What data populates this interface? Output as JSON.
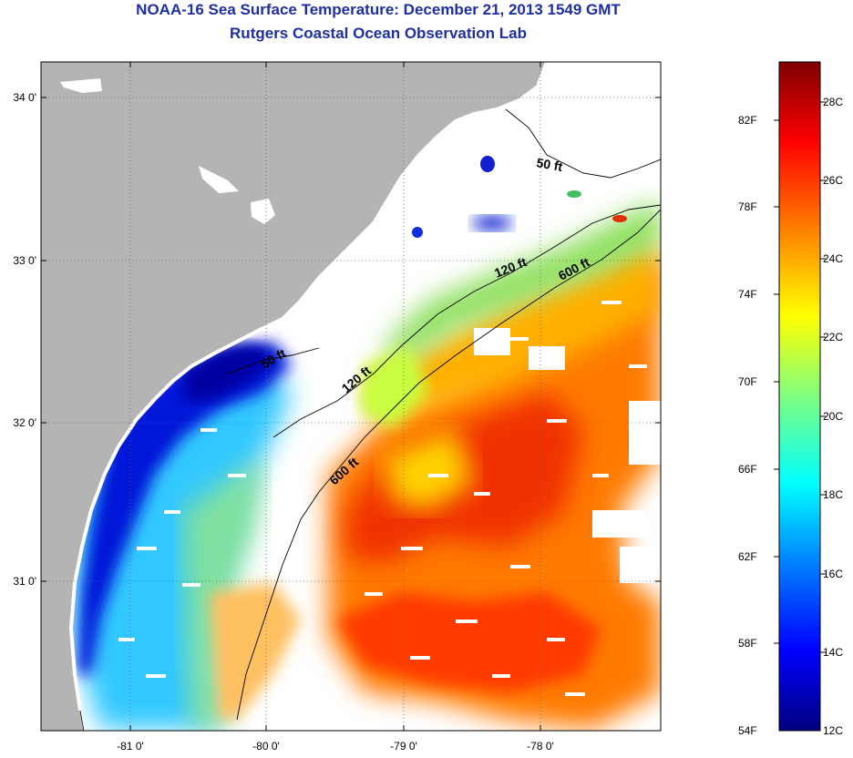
{
  "title": "NOAA-16 Sea Surface Temperature:  December 21, 2013 1549 GMT",
  "subtitle": "Rutgers Coastal Ocean Observation Lab",
  "axes": {
    "lon_ticks": [
      "-81 0'",
      "-80 0'",
      "-79 0'",
      "-78 0'"
    ],
    "lat_ticks": [
      "34 0'",
      "33 0'",
      "32 0'",
      "31 0'"
    ],
    "grid": "dotted"
  },
  "contours": {
    "labels_50": [
      "50 ft",
      "50 ft"
    ],
    "labels_120": [
      "120 ft",
      "120 ft"
    ],
    "labels_600": [
      "600 ft",
      "600 ft"
    ]
  },
  "colorbar": {
    "fahrenheit": [
      "82F",
      "78F",
      "74F",
      "70F",
      "66F",
      "62F",
      "58F",
      "54F"
    ],
    "celsius": [
      "28C",
      "26C",
      "24C",
      "22C",
      "20C",
      "18C",
      "16C",
      "14C",
      "12C"
    ],
    "scale_colors": [
      "#00007f",
      "#0000ff",
      "#0080ff",
      "#00ffff",
      "#80ff80",
      "#ffff00",
      "#ff8000",
      "#ff0000",
      "#7f0000"
    ]
  },
  "colors": {
    "land": "#b4b4b4",
    "cloud": "#ffffff",
    "title": "#1f2fa0"
  }
}
